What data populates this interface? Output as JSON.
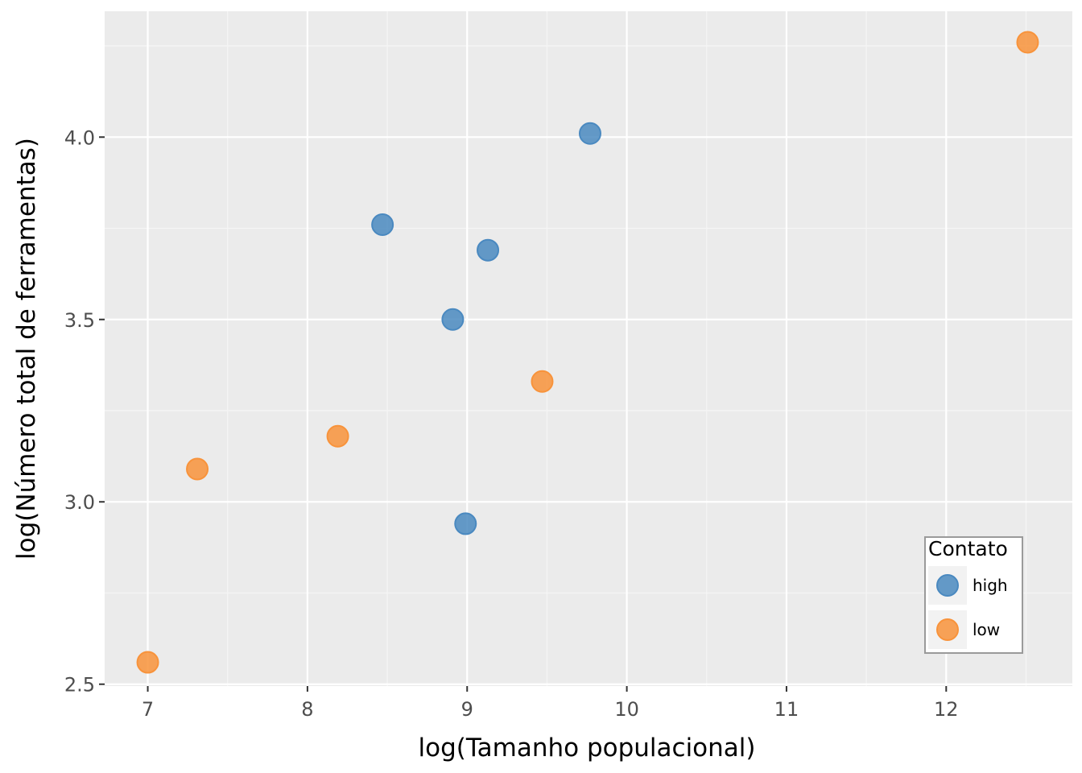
{
  "chart_data": {
    "type": "scatter",
    "title": "",
    "xlabel": "log(Tamanho populacional)",
    "ylabel": "log(Número total de ferramentas)",
    "xlim": [
      6.73,
      12.79
    ],
    "ylim": [
      2.495,
      4.345
    ],
    "x_ticks": [
      7,
      8,
      9,
      10,
      11,
      12
    ],
    "x_tick_labels": [
      "7",
      "8",
      "9",
      "10",
      "11",
      "12"
    ],
    "y_ticks": [
      2.5,
      3.0,
      3.5,
      4.0
    ],
    "y_tick_labels": [
      "2.5",
      "3.0",
      "3.5",
      "4.0"
    ],
    "grid": true,
    "legend": {
      "title": "Contato",
      "position": "bottom-right (inside)",
      "entries": [
        {
          "label": "high",
          "color": "#4a89c0"
        },
        {
          "label": "low",
          "color": "#f8933b"
        }
      ]
    },
    "series": [
      {
        "name": "high",
        "color": "#4a89c0",
        "points": [
          {
            "x": 8.47,
            "y": 3.76
          },
          {
            "x": 8.91,
            "y": 3.5
          },
          {
            "x": 8.99,
            "y": 2.94
          },
          {
            "x": 9.13,
            "y": 3.69
          },
          {
            "x": 9.77,
            "y": 4.01
          }
        ]
      },
      {
        "name": "low",
        "color": "#f8933b",
        "points": [
          {
            "x": 7.0,
            "y": 2.56
          },
          {
            "x": 7.31,
            "y": 3.09
          },
          {
            "x": 8.19,
            "y": 3.18
          },
          {
            "x": 9.47,
            "y": 3.33
          },
          {
            "x": 12.51,
            "y": 4.26
          }
        ]
      }
    ]
  }
}
